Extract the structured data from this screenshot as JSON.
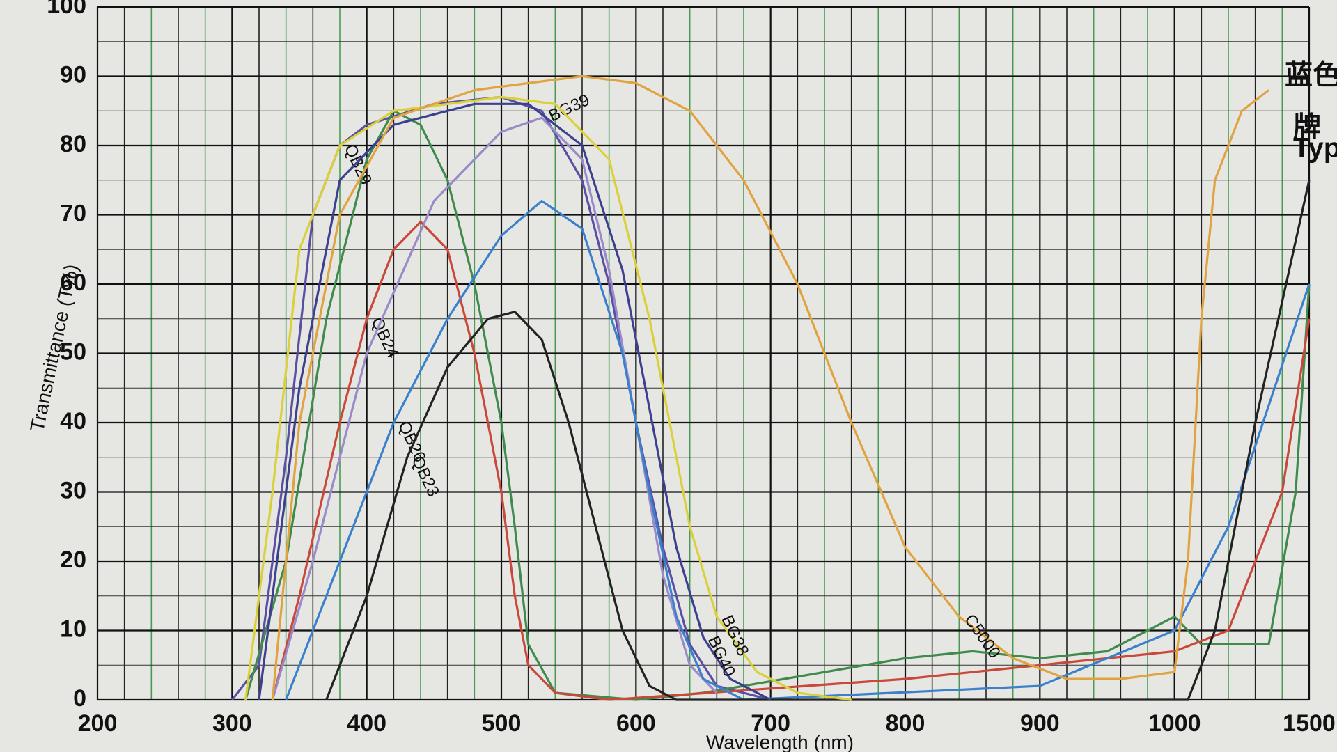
{
  "chart_data": {
    "type": "line",
    "y_label": "Transmittance (T%)",
    "x_label": "Wavelength (nm)",
    "xticks": [
      200,
      300,
      400,
      500,
      600,
      700,
      800,
      900,
      1000,
      1500
    ],
    "xlim": [
      200,
      1500
    ],
    "ylim": [
      0,
      100
    ],
    "yticks": [
      0,
      10,
      20,
      30,
      40,
      50,
      60,
      70,
      80,
      90,
      100
    ],
    "grid": true,
    "side_labels": [
      "蓝色玻",
      "牌",
      "Typ"
    ],
    "series": [
      {
        "name": "QB29",
        "color": "#5a4fa3",
        "x": [
          300,
          320,
          340,
          360,
          380,
          400,
          450,
          500,
          530,
          560,
          580,
          600,
          620,
          640,
          660,
          700
        ],
        "values": [
          0,
          5,
          35,
          70,
          80,
          83,
          86,
          87,
          85,
          75,
          60,
          40,
          22,
          8,
          2,
          0
        ]
      },
      {
        "color": "#3f8a4c",
        "x": [
          310,
          340,
          370,
          400,
          420,
          440,
          460,
          480,
          500,
          510,
          520,
          540,
          600,
          650,
          800,
          850,
          900,
          950,
          1000,
          1050,
          1100,
          1200,
          1350,
          1450,
          1500
        ],
        "values": [
          0,
          20,
          55,
          78,
          85,
          83,
          75,
          60,
          40,
          25,
          8,
          1,
          0,
          1,
          6,
          7,
          6,
          7,
          12,
          10,
          8,
          8,
          8,
          30,
          60
        ]
      },
      {
        "name": "QB24",
        "color": "#c9483a",
        "x": [
          330,
          350,
          380,
          400,
          420,
          440,
          460,
          480,
          500,
          510,
          520,
          540,
          580,
          800,
          900,
          1000,
          1200,
          1400,
          1500
        ],
        "values": [
          0,
          15,
          40,
          55,
          65,
          69,
          65,
          50,
          30,
          15,
          5,
          1,
          0,
          3,
          5,
          7,
          10,
          30,
          55
        ]
      },
      {
        "name": "BG39",
        "color": "#9b8ac9",
        "x": [
          330,
          360,
          400,
          450,
          500,
          530,
          560,
          580,
          600,
          620,
          640,
          660
        ],
        "values": [
          0,
          20,
          50,
          72,
          82,
          84,
          78,
          62,
          40,
          18,
          5,
          1
        ]
      },
      {
        "name": "QB26",
        "color": "#3a80cc",
        "x": [
          340,
          380,
          420,
          460,
          500,
          530,
          560,
          590,
          610,
          630,
          650,
          680,
          900,
          1000,
          1200,
          1500
        ],
        "values": [
          0,
          20,
          40,
          55,
          67,
          72,
          68,
          50,
          30,
          12,
          3,
          0,
          2,
          10,
          25,
          60
        ]
      },
      {
        "name": "QB23",
        "color": "#222222",
        "x": [
          370,
          400,
          430,
          460,
          490,
          510,
          530,
          550,
          570,
          590,
          610,
          630,
          1050,
          1150,
          1300,
          1500
        ],
        "values": [
          0,
          15,
          35,
          48,
          55,
          56,
          52,
          40,
          25,
          10,
          2,
          0,
          0,
          10,
          40,
          75
        ]
      },
      {
        "name": "BG38",
        "color": "#dcd03a",
        "x": [
          310,
          330,
          350,
          380,
          420,
          500,
          540,
          580,
          610,
          640,
          660,
          690,
          720,
          760
        ],
        "values": [
          0,
          30,
          65,
          80,
          85,
          87,
          86,
          78,
          55,
          25,
          12,
          4,
          1,
          0
        ]
      },
      {
        "name": "BG40",
        "color": "#3d3f8f",
        "x": [
          320,
          350,
          380,
          420,
          480,
          520,
          560,
          590,
          610,
          630,
          650,
          670,
          700
        ],
        "values": [
          0,
          45,
          75,
          83,
          86,
          86,
          80,
          62,
          42,
          22,
          9,
          3,
          0
        ]
      },
      {
        "name": "C5000",
        "color": "#e0a340",
        "x": [
          330,
          350,
          380,
          420,
          480,
          560,
          600,
          640,
          680,
          720,
          760,
          800,
          840,
          880,
          920,
          960,
          1000,
          1050,
          1100,
          1150,
          1250,
          1350
        ],
        "values": [
          0,
          40,
          70,
          84,
          88,
          90,
          89,
          85,
          75,
          60,
          40,
          22,
          12,
          6,
          3,
          3,
          4,
          20,
          55,
          75,
          85,
          88
        ]
      }
    ]
  }
}
